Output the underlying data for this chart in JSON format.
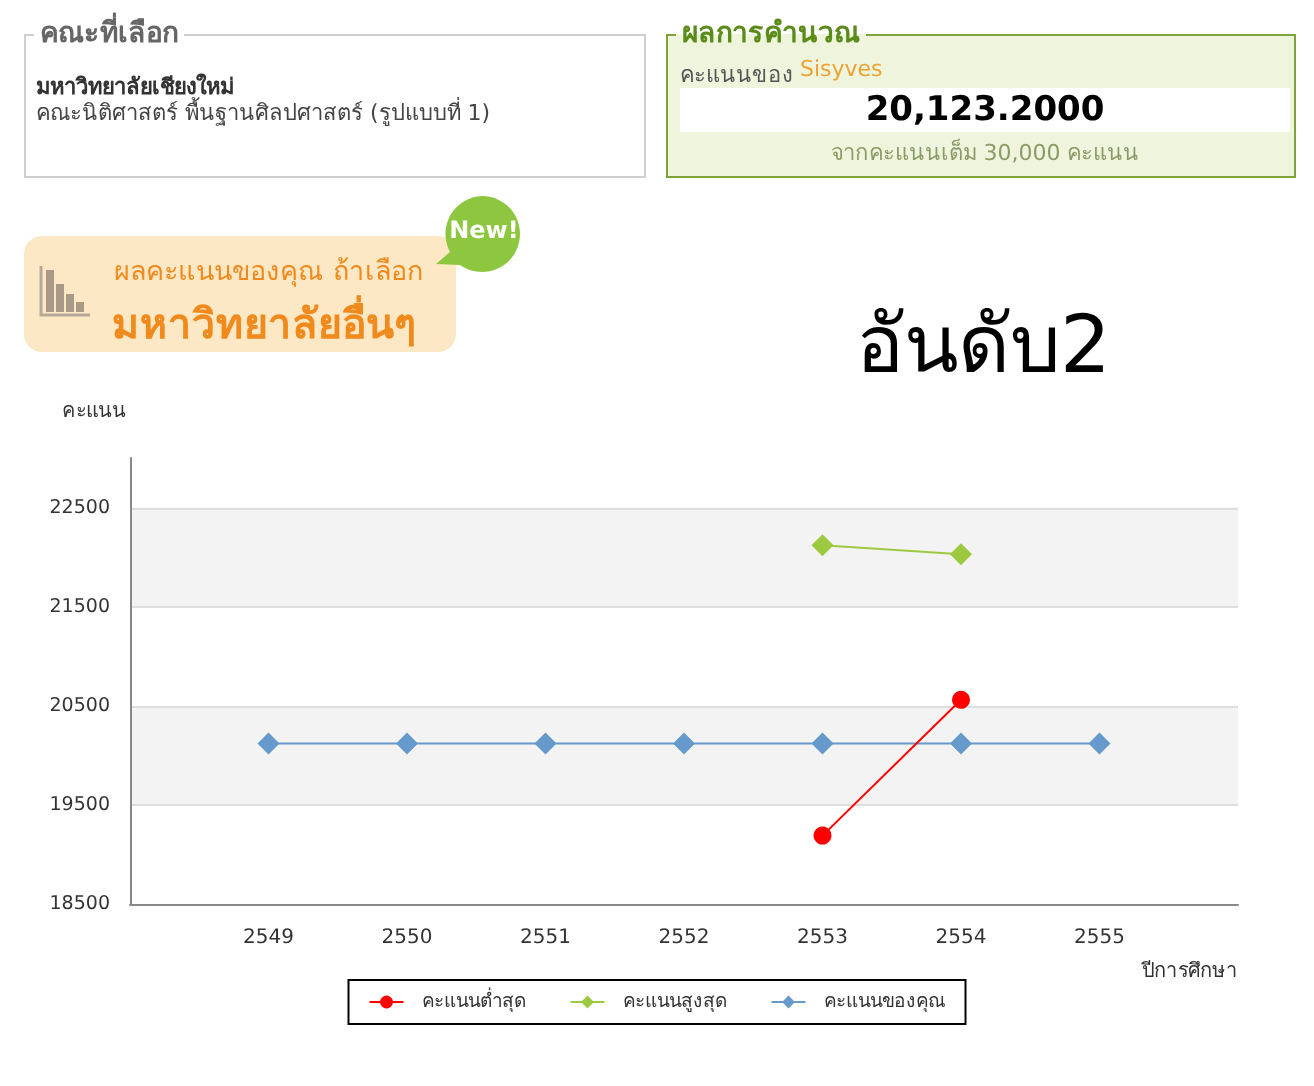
{
  "chart_data": {
    "type": "line",
    "title": "อันดับ2",
    "xlabel": "ปีการศึกษา",
    "ylabel": "คะแนน",
    "x": [
      2549,
      2550,
      2551,
      2552,
      2553,
      2554,
      2555
    ],
    "series": [
      {
        "name": "คะแนนต่ำสุด",
        "color": "#ff0000",
        "marker": "circle",
        "values": [
          null,
          null,
          null,
          null,
          19190,
          20560,
          null
        ]
      },
      {
        "name": "คะแนนสูงสุด",
        "color": "#9dc940",
        "marker": "diamond",
        "values": [
          null,
          null,
          null,
          null,
          22120,
          22030,
          null
        ]
      },
      {
        "name": "คะแนนของคุณ",
        "color": "#6699cc",
        "marker": "diamond",
        "values": [
          20120,
          20120,
          20120,
          20120,
          20120,
          20120,
          20120
        ]
      }
    ],
    "xlim": [
      2548,
      2556
    ],
    "xticks": [
      2549,
      2550,
      2551,
      2552,
      2553,
      2554,
      2555
    ],
    "ylim": [
      18500,
      23000
    ],
    "yticks": [
      18500,
      19500,
      20500,
      21500,
      22500
    ],
    "grid": "y",
    "legend": "bottom",
    "line_style": "solid",
    "annotations": [
      "คณะที่เลือก",
      "มหาวิทยาลัยเชียงใหม่",
      "คณะนิติศาสตร์ พื้นฐานศิลปศาสตร์ (รูปแบบที่ 1)",
      "ผลการคำนวณ",
      "คะแนนของ",
      "Sisyves",
      "20,123.2000",
      "จากคะแนนเต็ม 30,000 คะแนน",
      "ผลคะแนนของคุณ ถ้าเลือก",
      "มหาวิทยาลัยอื่นๆ",
      "New!"
    ]
  }
}
